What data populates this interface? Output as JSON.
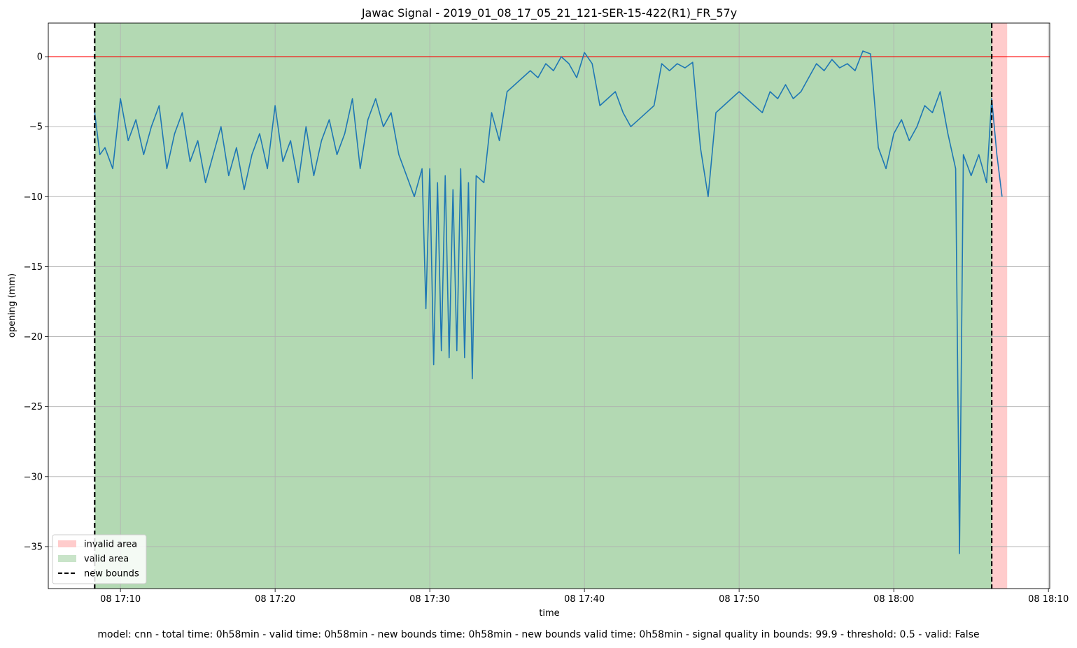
{
  "chart_data": {
    "type": "line",
    "title": "Jawac Signal - 2019_01_08_17_05_21_121-SER-15-422(R1)_FR_57y",
    "xlabel": "time",
    "ylabel": "opening (mm)",
    "xlim": [
      "2019-01-08 17:05:20",
      "2019-01-08 18:10:05"
    ],
    "ylim": [
      -38.0,
      2.4
    ],
    "grid": true,
    "x_ticks": [
      "08 17:10",
      "08 17:20",
      "08 17:30",
      "08 17:40",
      "08 17:50",
      "08 18:00",
      "08 18:10"
    ],
    "y_ticks": [
      0,
      -5,
      -10,
      -15,
      -20,
      -25,
      -30,
      -35
    ],
    "threshold_line": {
      "value": 0,
      "color": "#ff0000"
    },
    "invalid_area": {
      "start": "2019-01-08 18:06:20",
      "end": "2019-01-08 18:07:20",
      "color": "#ffcccc"
    },
    "valid_area": {
      "start": "2019-01-08 17:08:20",
      "end": "2019-01-08 18:06:20",
      "color": "#b3d9b3"
    },
    "new_bounds": [
      "2019-01-08 17:08:20",
      "2019-01-08 18:06:20"
    ],
    "legend": {
      "placement": "lower-left",
      "entries": [
        {
          "label": "invalid area",
          "kind": "patch",
          "color": "#ffcccc"
        },
        {
          "label": "valid area",
          "kind": "patch",
          "color": "#c9e4c9"
        },
        {
          "label": "new bounds",
          "kind": "dashed",
          "color": "#000000"
        }
      ]
    },
    "series": [
      {
        "color": "#1f77b4",
        "x": [
          "17:08:20",
          "17:08:40",
          "17:09:00",
          "17:09:30",
          "17:10:00",
          "17:10:30",
          "17:11:00",
          "17:11:30",
          "17:12:00",
          "17:12:30",
          "17:13:00",
          "17:13:30",
          "17:14:00",
          "17:14:30",
          "17:15:00",
          "17:15:30",
          "17:16:00",
          "17:16:30",
          "17:17:00",
          "17:17:30",
          "17:18:00",
          "17:18:30",
          "17:19:00",
          "17:19:30",
          "17:20:00",
          "17:20:30",
          "17:21:00",
          "17:21:30",
          "17:22:00",
          "17:22:30",
          "17:23:00",
          "17:23:30",
          "17:24:00",
          "17:24:30",
          "17:25:00",
          "17:25:30",
          "17:26:00",
          "17:26:30",
          "17:27:00",
          "17:27:30",
          "17:28:00",
          "17:28:30",
          "17:29:00",
          "17:29:30",
          "17:29:45",
          "17:30:00",
          "17:30:15",
          "17:30:30",
          "17:30:45",
          "17:31:00",
          "17:31:15",
          "17:31:30",
          "17:31:45",
          "17:32:00",
          "17:32:15",
          "17:32:30",
          "17:32:45",
          "17:33:00",
          "17:33:30",
          "17:34:00",
          "17:34:30",
          "17:35:00",
          "17:35:30",
          "17:36:00",
          "17:36:30",
          "17:37:00",
          "17:37:30",
          "17:38:00",
          "17:38:30",
          "17:39:00",
          "17:39:30",
          "17:40:00",
          "17:40:30",
          "17:41:00",
          "17:41:30",
          "17:42:00",
          "17:42:30",
          "17:43:00",
          "17:43:30",
          "17:44:00",
          "17:44:30",
          "17:45:00",
          "17:45:30",
          "17:46:00",
          "17:46:30",
          "17:47:00",
          "17:47:30",
          "17:48:00",
          "17:48:30",
          "17:49:00",
          "17:49:30",
          "17:50:00",
          "17:50:30",
          "17:51:00",
          "17:51:30",
          "17:52:00",
          "17:52:30",
          "17:53:00",
          "17:53:30",
          "17:54:00",
          "17:54:30",
          "17:55:00",
          "17:55:30",
          "17:56:00",
          "17:56:30",
          "17:57:00",
          "17:57:30",
          "17:58:00",
          "17:58:30",
          "17:59:00",
          "17:59:30",
          "18:00:00",
          "18:00:30",
          "18:01:00",
          "18:01:30",
          "18:02:00",
          "18:02:30",
          "18:03:00",
          "18:03:30",
          "18:04:00",
          "18:04:15",
          "18:04:30",
          "18:05:00",
          "18:05:30",
          "18:06:00",
          "18:06:20",
          "18:06:40",
          "18:07:00"
        ],
        "values": [
          -4.0,
          -7.0,
          -6.5,
          -8.0,
          -3.0,
          -6.0,
          -4.5,
          -7.0,
          -5.0,
          -3.5,
          -8.0,
          -5.5,
          -4.0,
          -7.5,
          -6.0,
          -9.0,
          -7.0,
          -5.0,
          -8.5,
          -6.5,
          -9.5,
          -7.0,
          -5.5,
          -8.0,
          -3.5,
          -7.5,
          -6.0,
          -9.0,
          -5.0,
          -8.5,
          -6.0,
          -4.5,
          -7.0,
          -5.5,
          -3.0,
          -8.0,
          -4.5,
          -3.0,
          -5.0,
          -4.0,
          -7.0,
          -8.5,
          -10.0,
          -8.0,
          -18.0,
          -8.0,
          -22.0,
          -9.0,
          -21.0,
          -8.5,
          -21.5,
          -9.5,
          -21.0,
          -8.0,
          -21.5,
          -9.0,
          -23.0,
          -8.5,
          -9.0,
          -4.0,
          -6.0,
          -2.5,
          -2.0,
          -1.5,
          -1.0,
          -1.5,
          -0.5,
          -1.0,
          0.0,
          -0.5,
          -1.5,
          0.3,
          -0.5,
          -3.5,
          -3.0,
          -2.5,
          -4.0,
          -5.0,
          -4.5,
          -4.0,
          -3.5,
          -0.5,
          -1.0,
          -0.5,
          -0.8,
          -0.4,
          -6.5,
          -10.0,
          -4.0,
          -3.5,
          -3.0,
          -2.5,
          -3.0,
          -3.5,
          -4.0,
          -2.5,
          -3.0,
          -2.0,
          -3.0,
          -2.5,
          -1.5,
          -0.5,
          -1.0,
          -0.2,
          -0.8,
          -0.5,
          -1.0,
          0.4,
          0.2,
          -6.5,
          -8.0,
          -5.5,
          -4.5,
          -6.0,
          -5.0,
          -3.5,
          -4.0,
          -2.5,
          -5.5,
          -8.0,
          -35.5,
          -7.0,
          -8.5,
          -7.0,
          -9.0,
          -3.0,
          -7.0,
          -10.0
        ]
      }
    ]
  },
  "footer": "model: cnn - total time: 0h58min - valid time: 0h58min - new bounds time: 0h58min - new bounds valid time: 0h58min - signal quality in bounds: 99.9 - threshold: 0.5 - valid: False"
}
